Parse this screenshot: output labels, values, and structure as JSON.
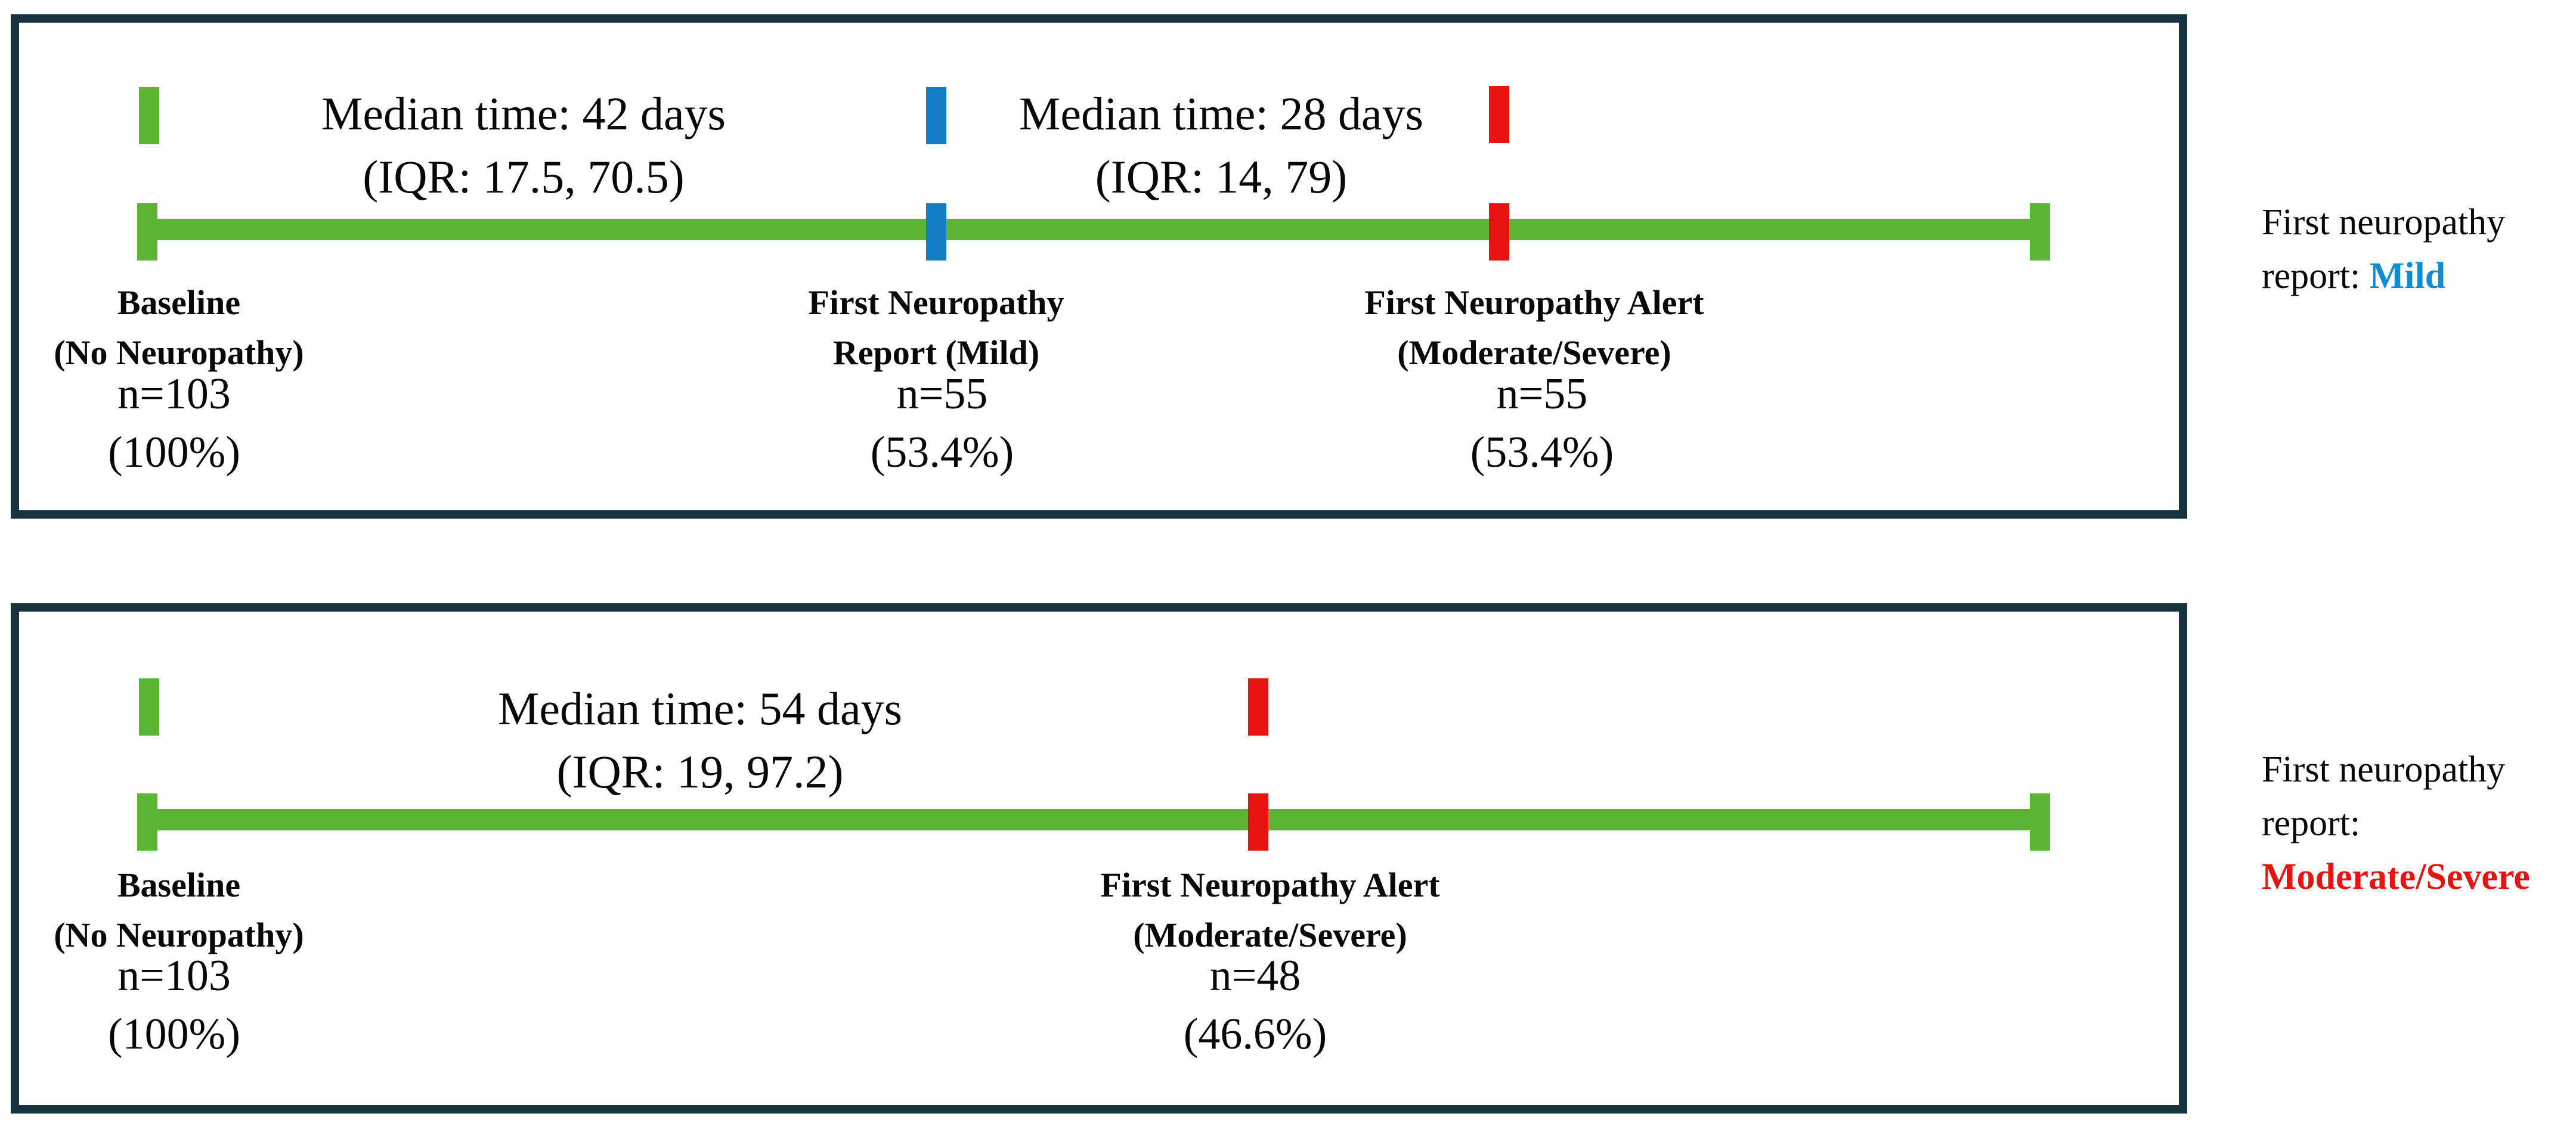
{
  "figure": {
    "colors": {
      "green": "#5cb434",
      "blue": "#147dc3",
      "blue_text": "#118bd2",
      "red": "#e8120f",
      "border": "#16333f"
    },
    "panels": [
      {
        "name": "First neuropathy report: Mild pathway",
        "medians": [
          {
            "line1": "Median time: 42 days",
            "line2": "(IQR: 17.5, 70.5)"
          },
          {
            "line1": "Median time: 28 days",
            "line2": "(IQR: 14, 79)"
          }
        ],
        "milestones": [
          {
            "label1": "Baseline",
            "label2": "(No Neuropathy)",
            "n": "n=103",
            "pct": "(100%)",
            "marker_color": "green"
          },
          {
            "label1": "First Neuropathy",
            "label2": "Report (Mild)",
            "n": "n=55",
            "pct": "(53.4%)",
            "marker_color": "blue"
          },
          {
            "label1": "First Neuropathy Alert",
            "label2": "(Moderate/Severe)",
            "n": "n=55",
            "pct": "(53.4%)",
            "marker_color": "red"
          }
        ],
        "side_note": {
          "text": "First neuropathy report:",
          "value": "Mild"
        }
      },
      {
        "name": "First neuropathy report: Moderate/Severe pathway",
        "medians": [
          {
            "line1": "Median time: 54 days",
            "line2": "(IQR: 19, 97.2)"
          }
        ],
        "milestones": [
          {
            "label1": "Baseline",
            "label2": "(No Neuropathy)",
            "n": "n=103",
            "pct": "(100%)",
            "marker_color": "green"
          },
          {
            "label1": "First Neuropathy Alert",
            "label2": "(Moderate/Severe)",
            "n": "n=48",
            "pct": "(46.6%)",
            "marker_color": "red"
          }
        ],
        "side_note": {
          "text": "First neuropathy report:",
          "value": "Moderate/Severe"
        }
      }
    ]
  }
}
